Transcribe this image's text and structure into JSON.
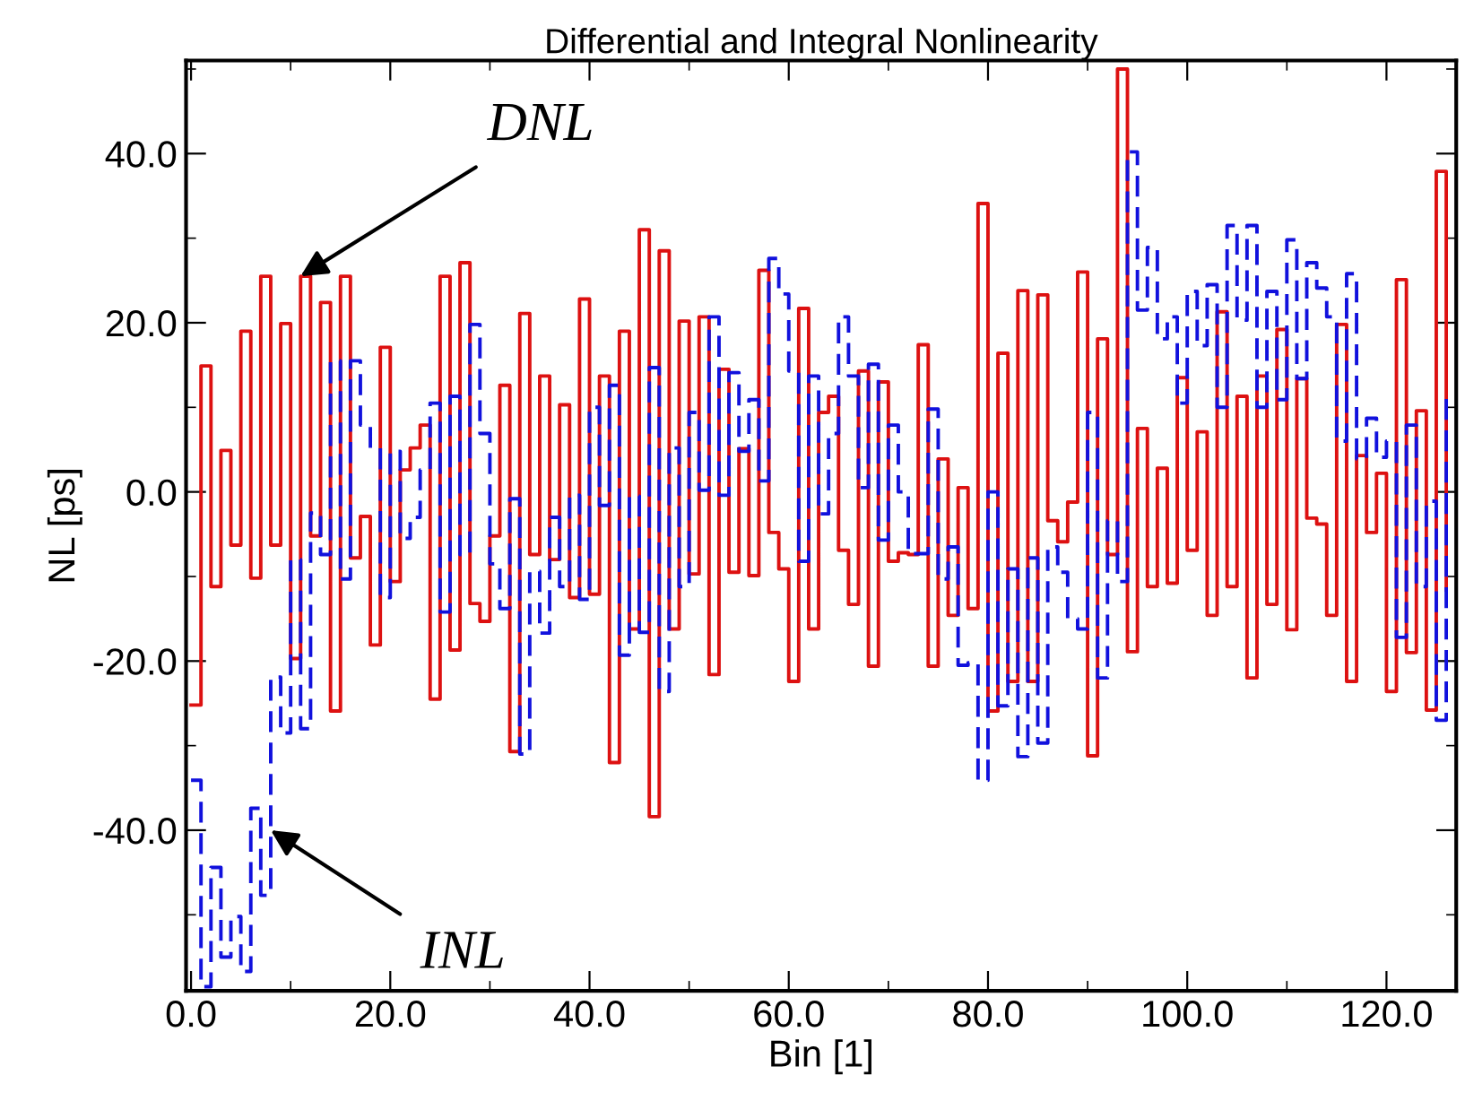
{
  "chart_data": {
    "type": "step",
    "title": "Differential and Integral Nonlinearity",
    "xlabel": "Bin [1]",
    "ylabel": "NL [ps]",
    "x": [
      0,
      1,
      2,
      3,
      4,
      5,
      6,
      7,
      8,
      9,
      10,
      11,
      12,
      13,
      14,
      15,
      16,
      17,
      18,
      19,
      20,
      21,
      22,
      23,
      24,
      25,
      26,
      27,
      28,
      29,
      30,
      31,
      32,
      33,
      34,
      35,
      36,
      37,
      38,
      39,
      40,
      41,
      42,
      43,
      44,
      45,
      46,
      47,
      48,
      49,
      50,
      51,
      52,
      53,
      54,
      55,
      56,
      57,
      58,
      59,
      60,
      61,
      62,
      63,
      64,
      65,
      66,
      67,
      68,
      69,
      70,
      71,
      72,
      73,
      74,
      75,
      76,
      77,
      78,
      79,
      80,
      81,
      82,
      83,
      84,
      85,
      86,
      87,
      88,
      89,
      90,
      91,
      92,
      93,
      94,
      95,
      96,
      97,
      98,
      99,
      100,
      101,
      102,
      103,
      104,
      105,
      106,
      107,
      108,
      109,
      110,
      111,
      112,
      113,
      114,
      115,
      116,
      117,
      118,
      119,
      120,
      121,
      122,
      123,
      124,
      125,
      126
    ],
    "series": [
      {
        "color": "#dd1111",
        "line_style": "solid",
        "values": [
          -25.2,
          14.9,
          -11.2,
          4.9,
          -6.3,
          19.0,
          -10.2,
          25.5,
          -6.3,
          19.9,
          -19.7,
          25.5,
          -5.2,
          22.4,
          -25.9,
          25.5,
          -7.8,
          -2.9,
          -18.1,
          17.1,
          -10.6,
          2.6,
          5.2,
          7.9,
          -24.5,
          25.5,
          -18.7,
          27.1,
          -13.2,
          -15.3,
          -5.2,
          12.6,
          -30.7,
          21.1,
          -7.4,
          13.7,
          -8.0,
          10.3,
          -12.5,
          22.8,
          -12.1,
          13.7,
          -32.0,
          19.0,
          -16.2,
          31.0,
          -38.4,
          28.5,
          -16.2,
          20.2,
          -9.7,
          20.7,
          -21.6,
          14.5,
          -9.5,
          5.1,
          -9.9,
          26.2,
          -4.8,
          -9.1,
          -22.4,
          21.7,
          -16.2,
          9.4,
          11.3,
          -6.9,
          -13.3,
          14.3,
          -20.6,
          13.0,
          -8.2,
          -7.2,
          -7.4,
          17.4,
          -20.6,
          3.9,
          -14.6,
          0.5,
          -13.8,
          34.1,
          -25.9,
          16.4,
          -22.4,
          23.8,
          -22.4,
          23.3,
          -3.4,
          -5.9,
          -1.2,
          26.0,
          -31.2,
          18.1,
          -7.4,
          50.0,
          -18.9,
          7.5,
          -11.2,
          2.8,
          -10.8,
          13.5,
          -6.9,
          7.1,
          -14.6,
          21.3,
          -11.2,
          11.3,
          -22.0,
          13.7,
          -13.3,
          19.2,
          -16.3,
          13.4,
          -3.1,
          -3.8,
          -14.6,
          19.8,
          -22.4,
          4.3,
          -4.8,
          2.2,
          -23.6,
          25.1,
          -19.0,
          9.6,
          -25.8,
          37.9,
          -11.6
        ]
      },
      {
        "color": "#1111dd",
        "line_style": "dashed",
        "values": [
          -34.1,
          -58.5,
          -44.4,
          -55.0,
          -50.2,
          -56.7,
          -37.4,
          -47.7,
          -21.9,
          -28.5,
          -8.0,
          -28.0,
          -2.5,
          -7.4,
          15.5,
          -10.3,
          15.5,
          7.9,
          5.2,
          -12.5,
          4.8,
          -5.5,
          -3.0,
          2.6,
          10.5,
          -14.2,
          11.3,
          -7.4,
          19.8,
          6.9,
          -8.5,
          -13.8,
          -0.8,
          -31.0,
          -9.4,
          -16.7,
          -3.0,
          -11.2,
          -0.4,
          -12.7,
          10.0,
          -1.6,
          12.6,
          -19.3,
          -0.5,
          -16.6,
          14.7,
          -23.6,
          5.2,
          -11.2,
          9.4,
          0.2,
          20.7,
          -0.4,
          14.1,
          4.8,
          10.9,
          1.3,
          27.6,
          23.4,
          14.3,
          -8.2,
          13.7,
          -2.6,
          6.9,
          20.7,
          13.7,
          0.5,
          15.1,
          -5.7,
          7.9,
          0.0,
          -7.3,
          -7.3,
          9.8,
          -10.3,
          -6.5,
          -20.5,
          -20.2,
          -34.1,
          0.0,
          -25.3,
          -9.1,
          -31.3,
          -7.8,
          -29.7,
          -6.5,
          -9.5,
          -15.0,
          -16.2,
          9.4,
          -22.0,
          -3.4,
          -10.6,
          40.2,
          21.5,
          28.9,
          18.1,
          20.7,
          10.5,
          23.7,
          17.3,
          24.5,
          10.0,
          31.5,
          20.3,
          31.5,
          10.0,
          23.7,
          10.9,
          29.8,
          13.4,
          27.1,
          24.1,
          20.7,
          6.0,
          25.8,
          3.9,
          8.7,
          4.1,
          6.0,
          -17.2,
          7.9,
          -11.2,
          -1.1,
          -27.0,
          11.3
        ]
      }
    ],
    "xlim": [
      -0.5,
      127
    ],
    "ylim": [
      -59,
      51
    ],
    "xticks": [
      {
        "value": 0,
        "label": "0.0"
      },
      {
        "value": 20,
        "label": "20.0"
      },
      {
        "value": 40,
        "label": "40.0"
      },
      {
        "value": 60,
        "label": "60.0"
      },
      {
        "value": 80,
        "label": "80.0"
      },
      {
        "value": 100,
        "label": "100.0"
      },
      {
        "value": 120,
        "label": "120.0"
      }
    ],
    "yticks": [
      {
        "value": -40,
        "label": "-40.0"
      },
      {
        "value": -20,
        "label": "-20.0"
      },
      {
        "value": 0,
        "label": "0.0"
      },
      {
        "value": 20,
        "label": "20.0"
      },
      {
        "value": 40,
        "label": "40.0"
      }
    ],
    "annotations": [
      {
        "text": "DNL",
        "x": 11,
        "y": 25.5
      },
      {
        "text": "INL",
        "x": 8,
        "y": -40
      }
    ],
    "grid": false,
    "legend": false
  }
}
